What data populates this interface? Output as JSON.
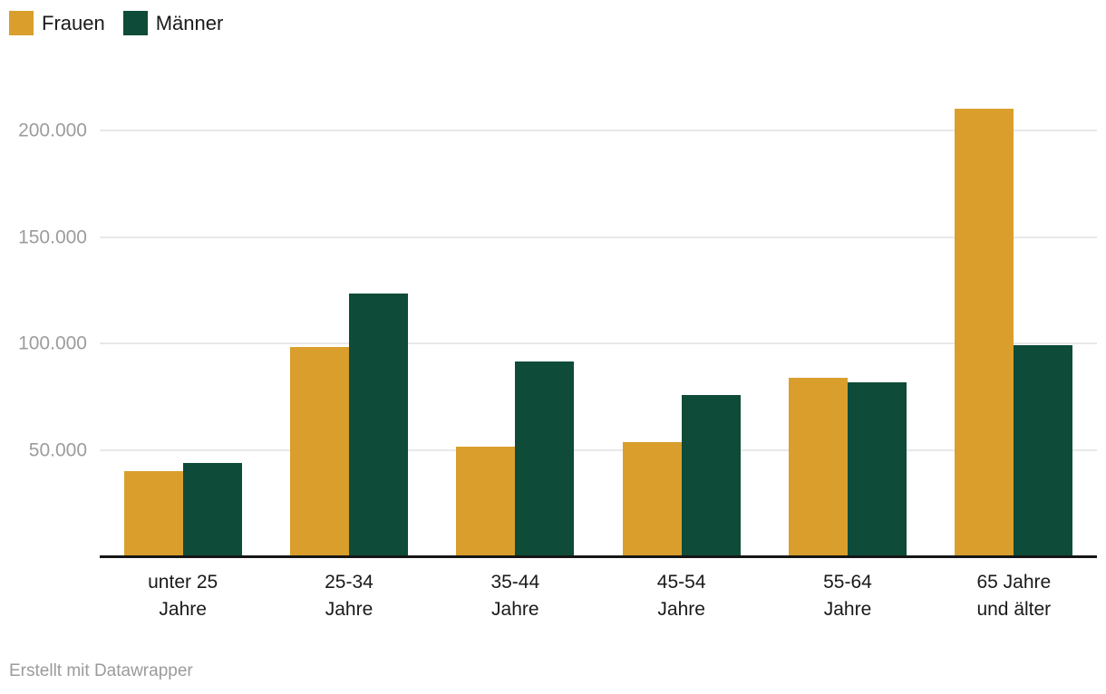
{
  "chart_data": {
    "type": "bar",
    "title": "",
    "xlabel": "",
    "ylabel": "",
    "categories": [
      "unter 25\nJahre",
      "25-34\nJahre",
      "35-44\nJahre",
      "45-54\nJahre",
      "55-64\nJahre",
      "65 Jahre\nund älter"
    ],
    "series": [
      {
        "name": "Frauen",
        "color": "#D99E2C",
        "values": [
          40500,
          98500,
          52000,
          54000,
          84000,
          210000
        ]
      },
      {
        "name": "Männer",
        "color": "#0E4B39",
        "values": [
          44000,
          123500,
          91500,
          76000,
          82000,
          99500
        ]
      }
    ],
    "ylim": [
      0,
      225000
    ],
    "yticks": [
      50000,
      100000,
      150000,
      200000
    ],
    "ytick_labels": [
      "50.000",
      "100.000",
      "150.000",
      "200.000"
    ],
    "grid": true,
    "gridline_color": "#e8e8e8",
    "axis_line_color": "#161616",
    "legend_position": "top-left"
  },
  "footer": {
    "text": "Erstellt mit Datawrapper"
  }
}
